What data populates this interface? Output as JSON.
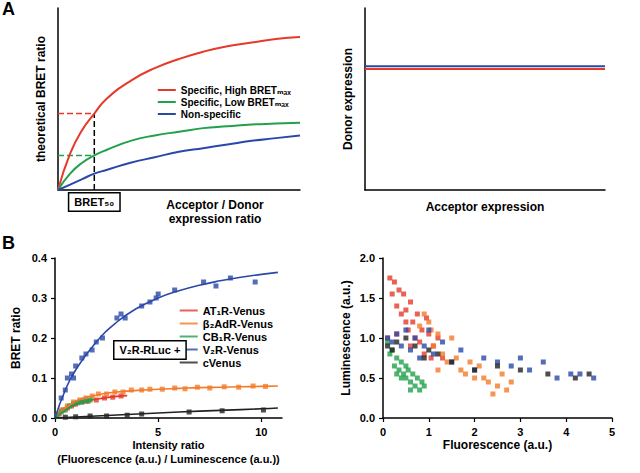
{
  "chart_data": [
    {
      "type": "line",
      "title": "A",
      "x_label": "Acceptor / Donor\nexpression ratio",
      "y_label": "theoretical BRET ratio",
      "xlim": [
        0,
        10
      ],
      "ylim": [
        0,
        1
      ],
      "tick_labels": false,
      "grid": false,
      "legend": "right",
      "series": [
        {
          "name": "Specific, High BRETₘₐₓ",
          "color": "#e53a2a",
          "x": [
            0,
            0.5,
            1,
            1.5,
            2,
            3,
            4,
            5,
            6,
            7,
            8,
            9,
            10
          ],
          "values": [
            0,
            0.2,
            0.33,
            0.42,
            0.5,
            0.6,
            0.67,
            0.72,
            0.76,
            0.79,
            0.81,
            0.83,
            0.84
          ]
        },
        {
          "name": "Specific, Low BRETₘₐₓ",
          "color": "#22a04a",
          "x": [
            0,
            0.5,
            1,
            1.5,
            2,
            3,
            4,
            5,
            6,
            7,
            8,
            9,
            10
          ],
          "values": [
            0,
            0.09,
            0.15,
            0.19,
            0.22,
            0.27,
            0.3,
            0.32,
            0.34,
            0.35,
            0.36,
            0.365,
            0.37
          ]
        },
        {
          "name": "Non-specific",
          "color": "#2a48a8",
          "x": [
            0,
            0.5,
            1,
            1.5,
            2,
            3,
            4,
            5,
            6,
            7,
            8,
            9,
            10
          ],
          "values": [
            0,
            0.03,
            0.06,
            0.09,
            0.11,
            0.15,
            0.18,
            0.21,
            0.23,
            0.25,
            0.27,
            0.285,
            0.3
          ]
        }
      ],
      "annotations": [
        {
          "type": "line",
          "line_style": "dashed",
          "color": "#e53a2a",
          "x": [
            0,
            1.5
          ],
          "values": [
            0.42,
            0.42
          ]
        },
        {
          "type": "line",
          "line_style": "dashed",
          "color": "#22a04a",
          "x": [
            0,
            1.5
          ],
          "values": [
            0.19,
            0.19
          ]
        },
        {
          "type": "line",
          "line_style": "dashed",
          "color": "#000000",
          "x": [
            1.5,
            1.5
          ],
          "values": [
            0,
            0.42
          ]
        },
        {
          "text": "BRET₅₀",
          "x": 1.5
        }
      ]
    },
    {
      "type": "line",
      "x_label": "Acceptor expression",
      "y_label": "Donor expression",
      "xlim": [
        0,
        10
      ],
      "ylim": [
        0,
        1
      ],
      "tick_labels": false,
      "grid": false,
      "series": [
        {
          "color": "#2a48a8",
          "x": [
            0,
            10
          ],
          "values": [
            0.68,
            0.68
          ]
        },
        {
          "color": "#e53a2a",
          "x": [
            0,
            10
          ],
          "values": [
            0.665,
            0.665
          ]
        }
      ]
    },
    {
      "type": "scatter",
      "title": "B",
      "x_label": "Intensity ratio\n(Fluorescence (a.u.) / Luminescence (a.u.))",
      "y_label": "BRET ratio",
      "xlim": [
        0,
        11
      ],
      "ylim": [
        0,
        0.4
      ],
      "xticks": [
        0,
        5,
        10
      ],
      "yticks": [
        {
          "value": 0,
          "label": "0.0"
        },
        {
          "value": 0.1,
          "label": "0.1"
        },
        {
          "value": 0.2,
          "label": "0.2"
        },
        {
          "value": 0.3,
          "label": "0.3"
        },
        {
          "value": 0.4,
          "label": "0.4"
        }
      ],
      "grid": false,
      "legend": "right",
      "marker": "square",
      "series": [
        {
          "name": "AT₁R-Venus",
          "color": "#e53a2a",
          "x": [
            0.2,
            0.4,
            0.6,
            0.8,
            1.0,
            1.3,
            1.6,
            2.0,
            2.4,
            2.8,
            3.2
          ],
          "values": [
            0.01,
            0.02,
            0.025,
            0.03,
            0.035,
            0.04,
            0.042,
            0.045,
            0.05,
            0.052,
            0.055
          ],
          "fit": {
            "x": [
              0,
              0.5,
              1,
              1.5,
              2,
              2.5,
              3,
              3.5
            ],
            "values": [
              0,
              0.02,
              0.033,
              0.042,
              0.047,
              0.051,
              0.054,
              0.056
            ]
          }
        },
        {
          "name": "β₂AdR-Venus",
          "color": "#f47a28",
          "x": [
            0.3,
            0.6,
            0.9,
            1.2,
            1.5,
            1.8,
            2.1,
            2.5,
            2.9,
            3.3,
            3.7,
            4.2,
            4.6,
            5.2,
            5.8,
            6.3,
            6.9,
            7.5,
            8.2,
            8.9,
            9.6,
            10.2
          ],
          "values": [
            0.02,
            0.03,
            0.04,
            0.045,
            0.05,
            0.055,
            0.06,
            0.06,
            0.065,
            0.065,
            0.07,
            0.07,
            0.072,
            0.072,
            0.075,
            0.073,
            0.077,
            0.075,
            0.078,
            0.077,
            0.08,
            0.079
          ],
          "fit": {
            "x": [
              0,
              1,
              2,
              3,
              4,
              5,
              6,
              7,
              8,
              9,
              10,
              10.8
            ],
            "values": [
              0,
              0.042,
              0.057,
              0.065,
              0.069,
              0.072,
              0.074,
              0.076,
              0.077,
              0.078,
              0.079,
              0.08
            ]
          }
        },
        {
          "name": "CB₁R-Venus",
          "color": "#22a04a",
          "x": [
            0.1,
            0.3,
            0.5,
            0.7,
            0.9,
            1.1,
            1.3,
            1.5,
            1.7
          ],
          "values": [
            0.005,
            0.015,
            0.02,
            0.03,
            0.035,
            0.038,
            0.04,
            0.042,
            0.045
          ],
          "fit": {
            "x": [
              0,
              0.5,
              1,
              1.5,
              1.9
            ],
            "values": [
              0,
              0.02,
              0.034,
              0.042,
              0.047
            ]
          }
        },
        {
          "name": "V₂R-Venus",
          "color": "#2a48a8",
          "x": [
            0.3,
            0.5,
            0.6,
            0.8,
            0.9,
            1.0,
            1.3,
            1.5,
            1.8,
            2.0,
            2.3,
            3.0,
            3.2,
            3.4,
            4.2,
            4.6,
            4.9,
            5.0,
            5.8,
            7.2,
            7.8,
            8.5,
            9.7
          ],
          "values": [
            0.05,
            0.07,
            0.1,
            0.11,
            0.1,
            0.13,
            0.15,
            0.16,
            0.17,
            0.19,
            0.2,
            0.25,
            0.26,
            0.25,
            0.28,
            0.29,
            0.3,
            0.31,
            0.32,
            0.34,
            0.33,
            0.35,
            0.34
          ],
          "fit": {
            "x": [
              0,
              0.5,
              1,
              2,
              3,
              4,
              5,
              6,
              7,
              8,
              9,
              10,
              10.8
            ],
            "values": [
              0,
              0.07,
              0.12,
              0.19,
              0.24,
              0.275,
              0.3,
              0.318,
              0.332,
              0.343,
              0.352,
              0.359,
              0.364
            ]
          }
        },
        {
          "name": "cVenus",
          "color": "#222222",
          "x": [
            0.5,
            1.0,
            1.7,
            2.5,
            3.5,
            4.2,
            6.5,
            8.1,
            10.1
          ],
          "values": [
            0.002,
            0.003,
            0.005,
            0.005,
            0.007,
            0.01,
            0.015,
            0.018,
            0.02
          ],
          "fit": {
            "x": [
              0,
              2,
              4,
              6,
              8,
              10,
              10.8
            ],
            "values": [
              0,
              0.005,
              0.01,
              0.015,
              0.019,
              0.023,
              0.025
            ]
          }
        }
      ],
      "annotations": [
        {
          "text": "V₂R-RLuc +",
          "x": 4.6,
          "y": 0.17
        }
      ]
    },
    {
      "type": "scatter",
      "x_label": "Fluorescence (a.u.)",
      "y_label": "Luminescence (a.u.)",
      "xlim": [
        0,
        5
      ],
      "ylim": [
        0,
        2
      ],
      "xticks": [
        0,
        1,
        2,
        3,
        4,
        5
      ],
      "yticks": [
        {
          "value": 0,
          "label": "0.0"
        },
        {
          "value": 0.5,
          "label": "0.5"
        },
        {
          "value": 1,
          "label": "1.0"
        },
        {
          "value": 1.5,
          "label": "1.5"
        },
        {
          "value": 2,
          "label": "2.0"
        }
      ],
      "grid": false,
      "marker": "square",
      "series": [
        {
          "color": "#e53a2a",
          "x": [
            0.1,
            0.15,
            0.2,
            0.25,
            0.3,
            0.35,
            0.4,
            0.45,
            0.5,
            0.5,
            0.55,
            0.6,
            0.65,
            0.7,
            0.75,
            0.8,
            0.85,
            0.9,
            0.95,
            1.0,
            1.05,
            1.1,
            1.2,
            1.3,
            0.3,
            0.6
          ],
          "values": [
            1.0,
            1.75,
            1.55,
            1.7,
            1.4,
            1.6,
            1.3,
            1.55,
            1.2,
            1.35,
            1.1,
            1.45,
            1.2,
            1.0,
            1.3,
            0.95,
            1.1,
            0.8,
            1.25,
            1.05,
            0.75,
            0.9,
            1.0,
            0.75,
            1.05,
            0.9
          ]
        },
        {
          "color": "#f47a28",
          "x": [
            0.8,
            0.9,
            1.0,
            1.05,
            1.1,
            1.2,
            1.3,
            1.4,
            1.5,
            1.6,
            1.7,
            1.8,
            1.9,
            2.0,
            2.1,
            2.2,
            2.3,
            2.5,
            2.6,
            2.7,
            2.8,
            1.2,
            2.4
          ],
          "values": [
            1.15,
            1.3,
            1.2,
            1.1,
            0.9,
            1.05,
            0.8,
            0.7,
            1.0,
            0.75,
            0.6,
            0.55,
            0.7,
            0.5,
            0.65,
            0.5,
            0.45,
            0.4,
            0.55,
            0.35,
            0.45,
            0.6,
            0.3
          ]
        },
        {
          "color": "#22a04a",
          "x": [
            0.1,
            0.15,
            0.2,
            0.25,
            0.3,
            0.35,
            0.4,
            0.45,
            0.5,
            0.55,
            0.6,
            0.65,
            0.7,
            0.75,
            0.8,
            0.85,
            0.9,
            0.6,
            0.5,
            0.4,
            0.3
          ],
          "values": [
            0.95,
            0.8,
            0.85,
            0.65,
            0.75,
            0.6,
            0.7,
            0.55,
            0.5,
            0.6,
            0.45,
            0.55,
            0.4,
            0.5,
            0.35,
            0.45,
            0.4,
            0.35,
            0.65,
            0.5,
            0.55
          ]
        },
        {
          "color": "#2a48a8",
          "x": [
            0.1,
            0.2,
            0.3,
            0.4,
            0.5,
            0.6,
            0.7,
            0.8,
            0.9,
            1.0,
            1.1,
            1.3,
            1.5,
            1.7,
            2.0,
            2.2,
            2.5,
            2.8,
            3.0,
            3.2,
            3.5,
            3.8,
            4.1,
            4.3,
            4.6
          ],
          "values": [
            1.0,
            0.95,
            1.05,
            0.9,
            1.1,
            0.85,
            1.0,
            0.75,
            0.9,
            1.1,
            0.8,
            0.95,
            0.7,
            0.85,
            0.6,
            0.75,
            0.7,
            0.65,
            0.75,
            0.6,
            0.7,
            0.5,
            0.55,
            0.55,
            0.5
          ]
        },
        {
          "color": "#222222",
          "x": [
            0.1,
            0.2,
            0.3,
            0.5,
            0.7,
            0.9,
            1.0,
            1.2,
            1.5,
            2.0,
            2.5,
            3.0,
            3.6,
            4.2,
            4.5
          ],
          "values": [
            0.9,
            0.85,
            0.95,
            1.0,
            0.9,
            0.75,
            0.85,
            0.8,
            0.7,
            0.6,
            0.65,
            0.6,
            0.55,
            0.5,
            0.55
          ]
        }
      ]
    }
  ]
}
